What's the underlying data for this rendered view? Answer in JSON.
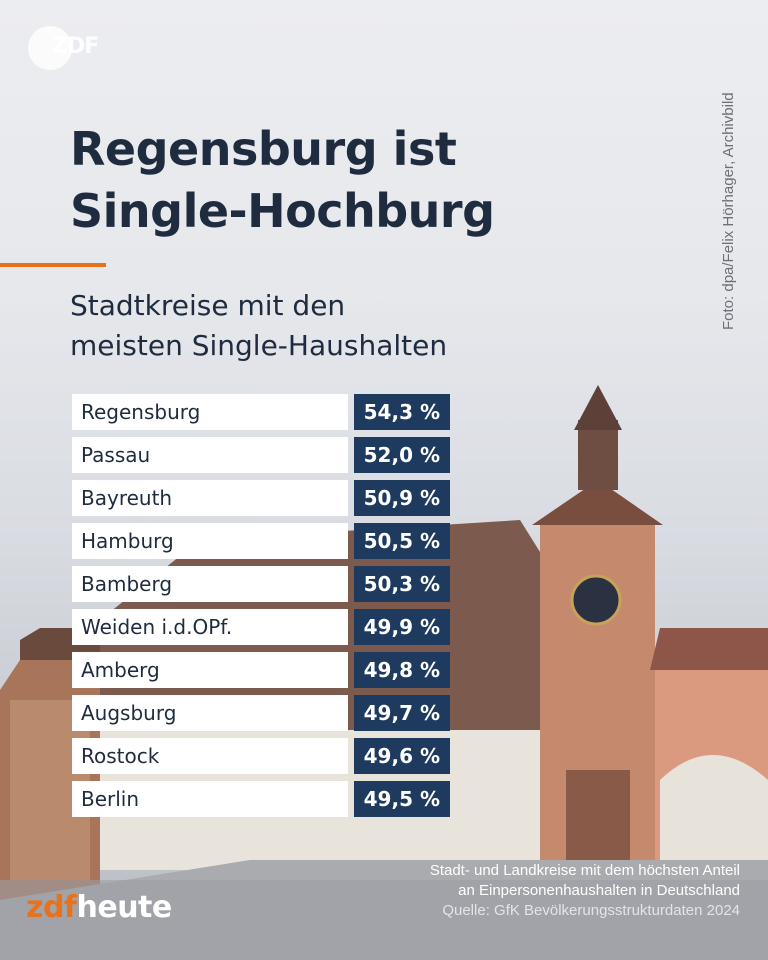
{
  "header": {
    "logo_text": "ZDF",
    "title_line1": "Regensburg ist",
    "title_line2": "Single-Hochburg",
    "subtitle_line1": "Stadtkreise mit den",
    "subtitle_line2": "meisten Single-Haushalten",
    "photo_credit": "Foto: dpa/Felix Hörhager, Archivbild"
  },
  "chart_data": {
    "type": "table",
    "title": "Regensburg ist Single-Hochburg",
    "subtitle": "Stadtkreise mit den meisten Single-Haushalten",
    "categories": [
      "Regensburg",
      "Passau",
      "Bayreuth",
      "Hamburg",
      "Bamberg",
      "Weiden i.d.OPf.",
      "Amberg",
      "Augsburg",
      "Rostock",
      "Berlin"
    ],
    "values": [
      54.3,
      52.0,
      50.9,
      50.5,
      50.3,
      49.9,
      49.8,
      49.7,
      49.6,
      49.5
    ],
    "value_labels": [
      "54,3 %",
      "52,0 %",
      "50,9 %",
      "50,5 %",
      "50,3 %",
      "49,9 %",
      "49,8 %",
      "49,7 %",
      "49,6 %",
      "49,5 %"
    ],
    "unit": "%"
  },
  "footer": {
    "note_line1": "Stadt- und Landkreise mit dem höchsten Anteil",
    "note_line2": "an Einpersonenhaushalten in Deutschland",
    "source": "Quelle: GfK Bevölkerungsstrukturdaten 2024",
    "brand_zdf": "zdf",
    "brand_heute": "heute"
  },
  "colors": {
    "title": "#1f2c3f",
    "accent": "#e8721c",
    "value_box": "#1e3a5f",
    "name_box": "#ffffff"
  }
}
